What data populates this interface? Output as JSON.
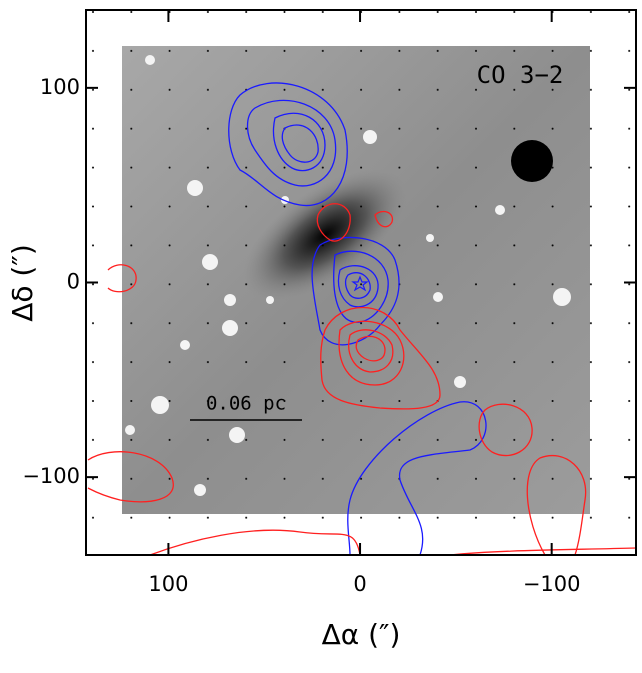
{
  "chart_data": {
    "type": "image",
    "xlabel": "Δα (″)",
    "ylabel": "Δδ (″)",
    "annotations": [
      "CO 3−2",
      "0.06 pc"
    ],
    "xlim": [
      143,
      -144
    ],
    "ylim": [
      -140,
      140
    ],
    "xticks": [
      100,
      0,
      {
        "value": -100,
        "label": "−100"
      }
    ],
    "yticks": [
      {
        "value": -100,
        "label": "−100"
      },
      0,
      100
    ]
  }
}
